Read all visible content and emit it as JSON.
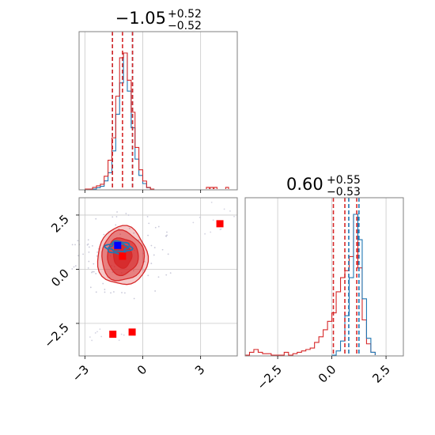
{
  "colors": {
    "red": "#d62728",
    "blue": "#1f77b4",
    "marker_red": "#ff0000",
    "marker_blue": "#0000ff",
    "grid": "#c8c8c8",
    "frame": "#7f7f7f"
  },
  "chart_data": [
    {
      "type": "histogram",
      "panel": "marginal-param-1",
      "title": {
        "value": "−1.05",
        "upper": "+0.52",
        "lower": "−0.52"
      },
      "xlim": [
        -3.3,
        4.9
      ],
      "grid": true,
      "series": [
        {
          "color": "#1f77b4",
          "bin_edges": [
            -3.0,
            -2.8,
            -2.6,
            -2.4,
            -2.2,
            -2.0,
            -1.8,
            -1.6,
            -1.4,
            -1.2,
            -1.0,
            -0.8,
            -0.6,
            -0.4,
            -0.2,
            0.0,
            0.2,
            0.4,
            0.6
          ],
          "counts": [
            0,
            0,
            0,
            1,
            2,
            6,
            12,
            28,
            55,
            78,
            100,
            72,
            45,
            22,
            10,
            4,
            1,
            0
          ],
          "quantiles": [
            -1.57,
            -0.53
          ]
        },
        {
          "color": "#d62728",
          "bin_edges": [
            -3.0,
            -2.8,
            -2.6,
            -2.4,
            -2.2,
            -2.0,
            -1.8,
            -1.6,
            -1.4,
            -1.2,
            -1.0,
            -0.8,
            -0.6,
            -0.4,
            -0.2,
            0.0,
            0.2,
            0.4,
            0.6
          ],
          "counts": [
            0,
            0,
            1,
            2,
            3,
            8,
            18,
            32,
            58,
            82,
            85,
            68,
            48,
            26,
            12,
            5,
            1,
            0
          ],
          "tail": [
            [
              3.3,
              1
            ],
            [
              3.5,
              1
            ],
            [
              3.7,
              1
            ],
            [
              4.3,
              1
            ]
          ],
          "quantiles": [
            -1.57,
            -1.05,
            -0.53
          ]
        }
      ]
    },
    {
      "type": "scatter",
      "panel": "joint-param-1-vs-param-2",
      "xticks": [
        "−3",
        "0",
        "3"
      ],
      "yticks": [
        "2.5",
        "0.0",
        "−2.5"
      ],
      "xlim": [
        -3.3,
        4.9
      ],
      "ylim": [
        -4.0,
        3.3
      ],
      "grid": true,
      "contours": [
        {
          "color": "#d62728",
          "center": [
            -1.05,
            0.6
          ],
          "levels": [
            [
              2.6,
              2.7,
              0.25
            ],
            [
              2.2,
              2.3,
              0.45
            ],
            [
              1.6,
              1.7,
              0.6
            ],
            [
              0.95,
              1.05,
              0.85
            ]
          ]
        },
        {
          "color": "#1f77b4",
          "center": [
            -1.25,
            1.0
          ],
          "levels": [
            [
              1.3,
              0.55
            ],
            [
              0.9,
              0.35
            ]
          ]
        }
      ],
      "markers": [
        {
          "color": "#ff0000",
          "x": -1.05,
          "y": 0.6
        },
        {
          "color": "#0000ff",
          "x": -1.3,
          "y": 1.1
        },
        {
          "color": "#ff0000",
          "x": 4.0,
          "y": 2.1
        },
        {
          "color": "#ff0000",
          "x": -1.55,
          "y": -3.0
        },
        {
          "color": "#ff0000",
          "x": -0.55,
          "y": -2.9
        }
      ]
    },
    {
      "type": "histogram",
      "panel": "marginal-param-2",
      "title": {
        "value": "0.60",
        "upper": "+0.55",
        "lower": "−0.53"
      },
      "xticks": [
        "−2.5",
        "0.0",
        "2.5"
      ],
      "xlim": [
        -4.0,
        3.3
      ],
      "grid": true,
      "series": [
        {
          "color": "#d62728",
          "bin_edges": [
            -4.0,
            -3.8,
            -3.6,
            -3.4,
            -3.2,
            -3.0,
            -2.8,
            -2.6,
            -2.4,
            -2.2,
            -2.0,
            -1.8,
            -1.6,
            -1.4,
            -1.2,
            -1.0,
            -0.8,
            -0.6,
            -0.4,
            -0.2,
            0.0,
            0.2,
            0.4,
            0.6,
            0.8,
            1.0,
            1.2,
            1.4,
            1.6,
            1.8,
            2.0
          ],
          "counts": [
            0,
            2,
            4,
            2,
            1,
            1,
            0,
            0,
            0,
            2,
            0,
            1,
            2,
            3,
            4,
            5,
            9,
            13,
            18,
            24,
            30,
            45,
            55,
            60,
            70,
            100,
            62,
            25,
            8,
            2
          ],
          "quantiles": [
            0.07,
            0.6,
            1.15
          ]
        },
        {
          "color": "#1f77b4",
          "bin_edges": [
            0.0,
            0.2,
            0.4,
            0.6,
            0.8,
            1.0,
            1.2,
            1.4,
            1.6,
            1.8,
            2.0
          ],
          "counts": [
            0,
            3,
            10,
            28,
            55,
            100,
            82,
            40,
            12,
            2
          ],
          "quantiles": [
            0.78,
            1.25
          ]
        }
      ]
    }
  ]
}
